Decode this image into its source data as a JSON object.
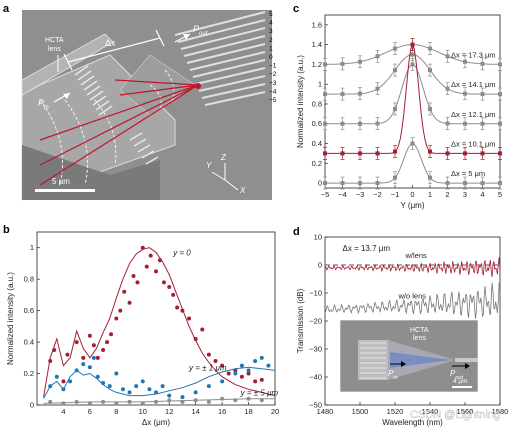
{
  "panels": {
    "a": {
      "letter": "a",
      "hcta_label": [
        "HCTA",
        "lens"
      ],
      "dx_label": "Δx",
      "pin_label": "P",
      "pin_sub": "in",
      "pout_label": "P",
      "pout_sub": "out",
      "scale_label": "5 μm",
      "axes": {
        "y": "Y",
        "z": "Z",
        "x": "X"
      },
      "waveguide_numbers": [
        "5",
        "4",
        "3",
        "2",
        "1",
        "0",
        "−1",
        "−2",
        "−3",
        "−4",
        "−5"
      ]
    },
    "b": {
      "letter": "b"
    },
    "c": {
      "letter": "c"
    },
    "d": {
      "letter": "d",
      "inset_label": [
        "HCTA",
        "lens"
      ],
      "inset_pin": "P",
      "inset_pin_sub": "in",
      "inset_pout": "P",
      "inset_pout_sub": "out",
      "inset_scale": "4 μm",
      "watermark": "CSDN @Lightning"
    }
  },
  "chart_data": [
    {
      "panel": "b",
      "type": "scatter",
      "xlabel": "Δx (μm)",
      "ylabel": "Normalized intensity (a.u.)",
      "xlim": [
        2,
        20
      ],
      "ylim": [
        0,
        1.1
      ],
      "xticks": [
        4,
        6,
        8,
        10,
        12,
        14,
        16,
        18,
        20
      ],
      "yticks": [
        0,
        0.2,
        0.4,
        0.6,
        0.8,
        1
      ],
      "series": [
        {
          "name": "y = 0",
          "color": "#a31f34",
          "curve": [
            [
              2.5,
              0.05
            ],
            [
              3.0,
              0.3
            ],
            [
              3.5,
              0.42
            ],
            [
              4.0,
              0.25
            ],
            [
              4.5,
              0.3
            ],
            [
              5.0,
              0.47
            ],
            [
              5.5,
              0.36
            ],
            [
              6.0,
              0.3
            ],
            [
              6.5,
              0.36
            ],
            [
              7.0,
              0.46
            ],
            [
              7.5,
              0.55
            ],
            [
              8.0,
              0.68
            ],
            [
              8.5,
              0.8
            ],
            [
              9.0,
              0.9
            ],
            [
              9.5,
              0.96
            ],
            [
              10.0,
              0.99
            ],
            [
              10.5,
              1.0
            ],
            [
              11.0,
              0.97
            ],
            [
              11.5,
              0.91
            ],
            [
              12.0,
              0.83
            ],
            [
              12.5,
              0.72
            ],
            [
              13.0,
              0.61
            ],
            [
              13.5,
              0.5
            ],
            [
              14.0,
              0.41
            ],
            [
              14.5,
              0.33
            ],
            [
              15.0,
              0.27
            ],
            [
              15.5,
              0.22
            ],
            [
              16.0,
              0.18
            ],
            [
              17.0,
              0.13
            ],
            [
              18.0,
              0.1
            ],
            [
              19.0,
              0.08
            ],
            [
              20.0,
              0.06
            ]
          ],
          "points": [
            [
              3.0,
              0.28
            ],
            [
              3.3,
              0.35
            ],
            [
              4.0,
              0.15
            ],
            [
              4.3,
              0.32
            ],
            [
              5.0,
              0.4
            ],
            [
              5.5,
              0.3
            ],
            [
              6.0,
              0.44
            ],
            [
              6.3,
              0.38
            ],
            [
              6.6,
              0.3
            ],
            [
              7.0,
              0.35
            ],
            [
              7.3,
              0.4
            ],
            [
              7.6,
              0.45
            ],
            [
              8.0,
              0.55
            ],
            [
              8.3,
              0.6
            ],
            [
              8.6,
              0.72
            ],
            [
              9.0,
              0.65
            ],
            [
              9.3,
              0.82
            ],
            [
              9.6,
              0.78
            ],
            [
              10.0,
              1.0
            ],
            [
              10.3,
              0.88
            ],
            [
              10.6,
              0.95
            ],
            [
              11.0,
              0.85
            ],
            [
              11.3,
              0.92
            ],
            [
              11.6,
              0.78
            ],
            [
              12.0,
              0.75
            ],
            [
              12.3,
              0.7
            ],
            [
              12.6,
              0.62
            ],
            [
              13.0,
              0.6
            ],
            [
              13.5,
              0.55
            ],
            [
              14.0,
              0.42
            ],
            [
              14.5,
              0.48
            ],
            [
              15.0,
              0.32
            ],
            [
              15.5,
              0.28
            ],
            [
              16.0,
              0.25
            ],
            [
              16.5,
              0.2
            ],
            [
              17.0,
              0.22
            ],
            [
              17.5,
              0.18
            ],
            [
              18.0,
              0.2
            ],
            [
              18.5,
              0.15
            ],
            [
              19.0,
              0.16
            ]
          ]
        },
        {
          "name": "y = ± 1 μm",
          "color": "#1f77b4",
          "curve": [
            [
              2.5,
              0.04
            ],
            [
              3.0,
              0.12
            ],
            [
              3.5,
              0.15
            ],
            [
              4.0,
              0.1
            ],
            [
              4.5,
              0.18
            ],
            [
              5.0,
              0.22
            ],
            [
              5.5,
              0.19
            ],
            [
              6.0,
              0.2
            ],
            [
              6.5,
              0.17
            ],
            [
              7.0,
              0.13
            ],
            [
              7.5,
              0.1
            ],
            [
              8.0,
              0.08
            ],
            [
              9.0,
              0.06
            ],
            [
              10.0,
              0.06
            ],
            [
              11.0,
              0.07
            ],
            [
              12.0,
              0.09
            ],
            [
              13.0,
              0.11
            ],
            [
              14.0,
              0.14
            ],
            [
              15.0,
              0.18
            ],
            [
              16.0,
              0.21
            ],
            [
              17.0,
              0.23
            ],
            [
              18.0,
              0.24
            ],
            [
              19.0,
              0.23
            ],
            [
              20.0,
              0.22
            ]
          ],
          "points": [
            [
              3.0,
              0.12
            ],
            [
              3.5,
              0.18
            ],
            [
              4.0,
              0.1
            ],
            [
              4.5,
              0.15
            ],
            [
              5.0,
              0.22
            ],
            [
              5.5,
              0.26
            ],
            [
              6.0,
              0.24
            ],
            [
              6.3,
              0.3
            ],
            [
              6.6,
              0.18
            ],
            [
              7.0,
              0.14
            ],
            [
              7.5,
              0.12
            ],
            [
              8.0,
              0.2
            ],
            [
              8.5,
              0.1
            ],
            [
              9.0,
              0.08
            ],
            [
              9.5,
              0.12
            ],
            [
              10.0,
              0.15
            ],
            [
              10.5,
              0.1
            ],
            [
              11.0,
              0.08
            ],
            [
              11.5,
              0.12
            ],
            [
              12.0,
              0.06
            ],
            [
              13.0,
              0.05
            ],
            [
              14.0,
              0.08
            ],
            [
              15.0,
              0.12
            ],
            [
              16.0,
              0.15
            ],
            [
              17.0,
              0.2
            ],
            [
              17.5,
              0.25
            ],
            [
              18.0,
              0.22
            ],
            [
              18.5,
              0.28
            ],
            [
              19.0,
              0.3
            ],
            [
              19.5,
              0.25
            ]
          ]
        },
        {
          "name": "y = ± 5 μm",
          "color": "#8c8c8c",
          "curve": [
            [
              2.5,
              0.01
            ],
            [
              6.0,
              0.02
            ],
            [
              10.0,
              0.02
            ],
            [
              14.0,
              0.03
            ],
            [
              18.0,
              0.04
            ],
            [
              20.0,
              0.04
            ]
          ],
          "points": [
            [
              3.0,
              0.02
            ],
            [
              4.0,
              0.01
            ],
            [
              5.0,
              0.02
            ],
            [
              6.0,
              0.01
            ],
            [
              7.0,
              0.02
            ],
            [
              8.0,
              0.01
            ],
            [
              9.0,
              0.02
            ],
            [
              10.0,
              0.01
            ],
            [
              11.0,
              0.02
            ],
            [
              12.0,
              0.03
            ],
            [
              13.0,
              0.02
            ],
            [
              14.0,
              0.03
            ],
            [
              15.0,
              0.02
            ],
            [
              16.0,
              0.04
            ],
            [
              17.0,
              0.03
            ],
            [
              18.0,
              0.04
            ],
            [
              19.0,
              0.03
            ]
          ]
        }
      ],
      "annotations": [
        {
          "text": "y = 0",
          "x": 12.3,
          "y": 0.95,
          "color": "#a31f34"
        },
        {
          "text": "y = ± 1 μm",
          "x": 13.5,
          "y": 0.22,
          "color": "#1f4e99"
        },
        {
          "text": "y = ± 5 μm",
          "x": 17.4,
          "y": 0.06,
          "color": "#555"
        }
      ]
    },
    {
      "panel": "c",
      "type": "line",
      "xlabel": "Y (μm)",
      "ylabel": "Normalized intensity (a.u.)",
      "xlim": [
        -5,
        5
      ],
      "ylim": [
        -0.05,
        1.7
      ],
      "xticks": [
        -5,
        -4,
        -3,
        -2,
        -1,
        0,
        1,
        2,
        3,
        4,
        5
      ],
      "yticks": [
        0,
        0.2,
        0.4,
        0.6,
        0.8,
        1,
        1.2,
        1.4,
        1.6
      ],
      "series": [
        {
          "name": "Δx = 17.3 μm",
          "offset": 1.2,
          "amp": 0.2,
          "width": 1.5,
          "color": "#8c8c8c"
        },
        {
          "name": "Δx = 14.1 μm",
          "offset": 0.9,
          "amp": 0.4,
          "width": 1.0,
          "color": "#8c8c8c"
        },
        {
          "name": "Δx = 12.1 μm",
          "offset": 0.6,
          "amp": 0.6,
          "width": 0.6,
          "color": "#8c8c8c"
        },
        {
          "name": "Δx = 10.1 μm",
          "offset": 0.3,
          "amp": 1.1,
          "width": 0.35,
          "color": "#a31f34"
        },
        {
          "name": "Δx = 5 μm",
          "offset": 0.0,
          "amp": 0.4,
          "width": 0.5,
          "color": "#8c8c8c"
        }
      ]
    },
    {
      "panel": "d",
      "type": "line",
      "xlabel": "Wavelength (nm)",
      "ylabel": "Transmission (dB)",
      "xlim": [
        1480,
        1580
      ],
      "ylim": [
        -50,
        10
      ],
      "xticks": [
        1480,
        1500,
        1520,
        1540,
        1560,
        1580
      ],
      "yticks": [
        -50,
        -40,
        -30,
        -20,
        -10,
        0,
        10
      ],
      "title_annotation": "Δx = 13.7 μm",
      "series": [
        {
          "name": "w/lens",
          "color": "#a31f34",
          "level": -1,
          "ripple": 0.8
        },
        {
          "name": "w/o lens",
          "color": "#777",
          "level": -16,
          "ripple": 1.5
        }
      ],
      "reference_line": 0
    }
  ]
}
